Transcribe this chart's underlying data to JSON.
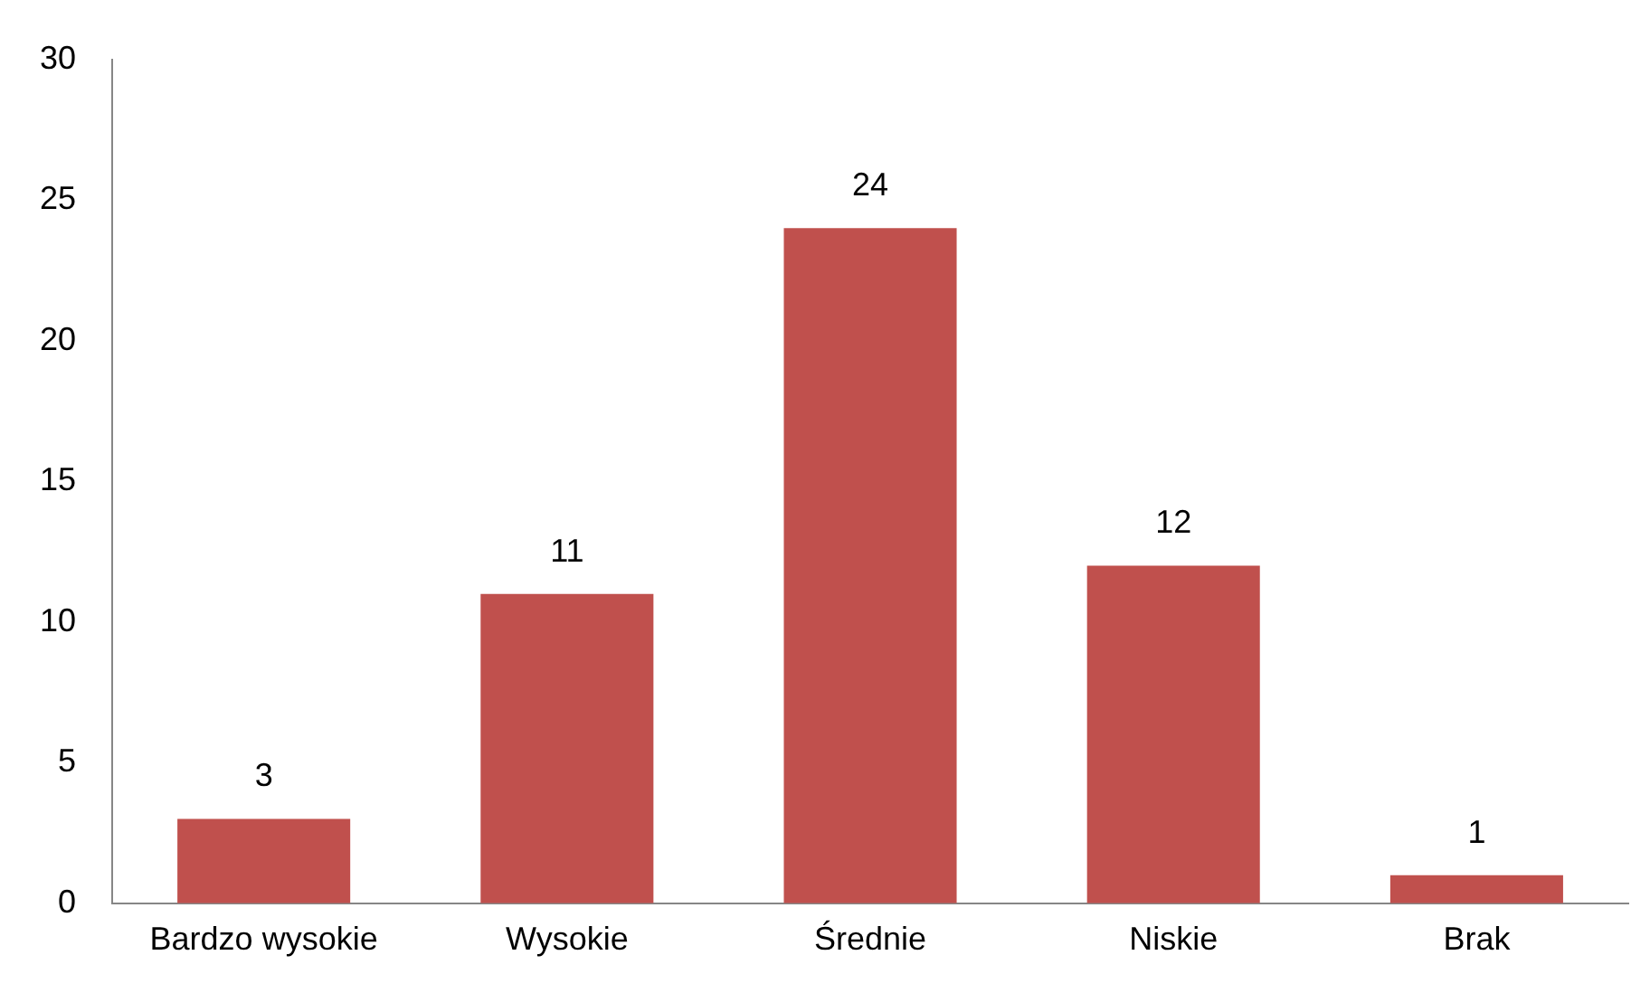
{
  "chart_data": {
    "type": "bar",
    "categories": [
      "Bardzo wysokie",
      "Wysokie",
      "Średnie",
      "Niskie",
      "Brak"
    ],
    "values": [
      3,
      11,
      24,
      12,
      1
    ],
    "color": "#c0504d",
    "ylim": [
      0,
      30
    ],
    "yticks": [
      0,
      5,
      10,
      15,
      20,
      25,
      30
    ],
    "grid": false,
    "legend": false,
    "data_labels": true
  }
}
